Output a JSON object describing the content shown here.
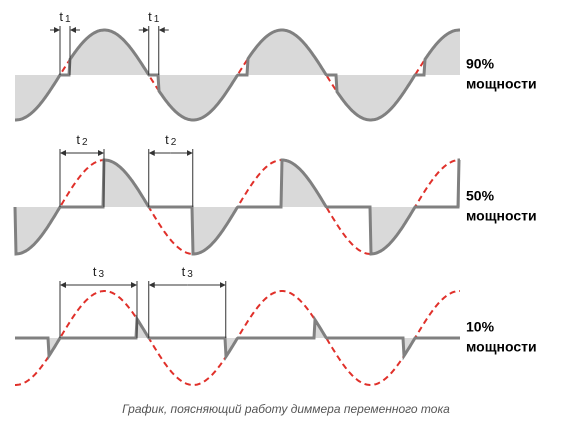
{
  "panels": [
    {
      "power": "90%",
      "power_unit": "мощности",
      "delay_symbol": "t",
      "delay_index": "1"
    },
    {
      "power": "50%",
      "power_unit": "мощности",
      "delay_symbol": "t",
      "delay_index": "2"
    },
    {
      "power": "10%",
      "power_unit": "мощности",
      "delay_symbol": "t",
      "delay_index": "3"
    }
  ],
  "caption": "График, поясняющий работу диммера переменного тока"
}
